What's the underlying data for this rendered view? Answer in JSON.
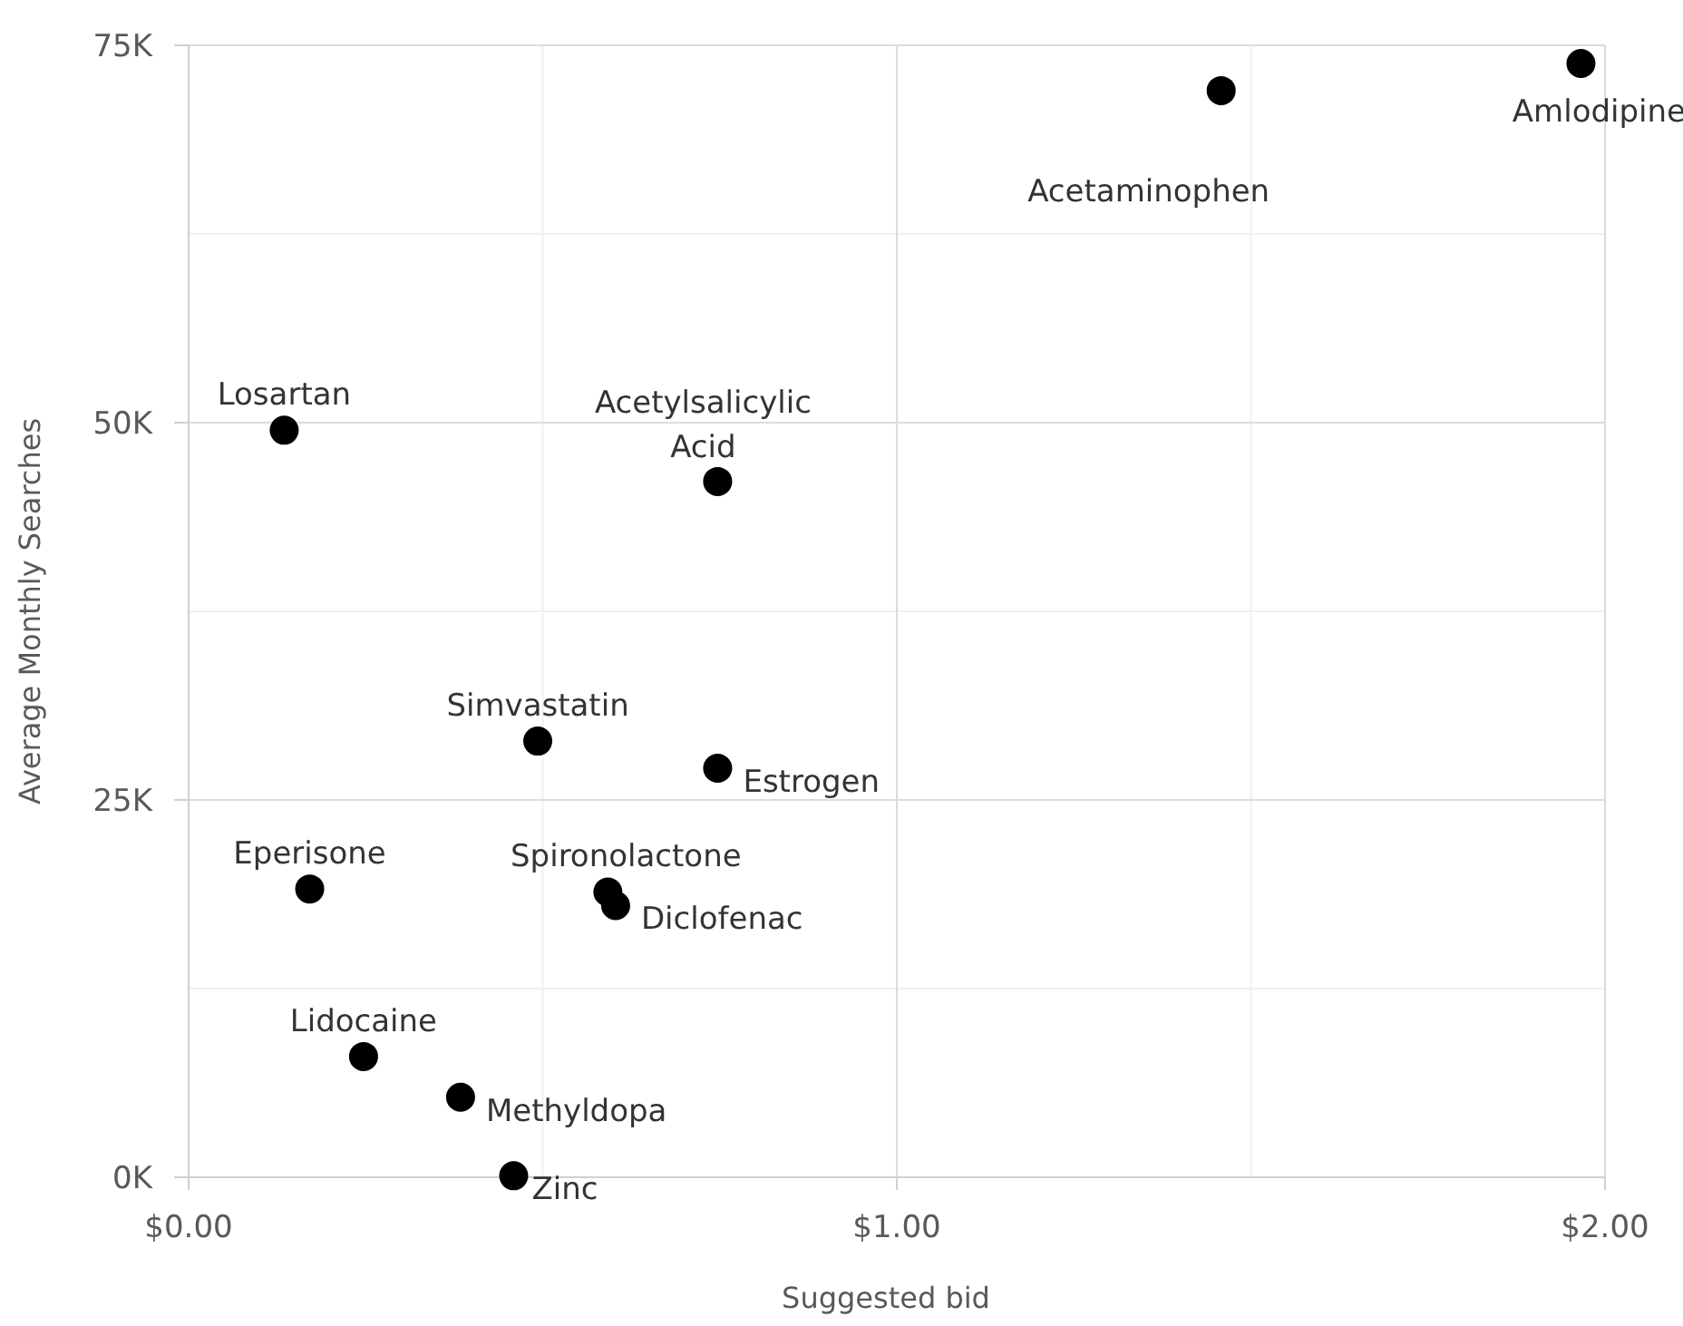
{
  "chart_data": {
    "type": "scatter",
    "xlabel": "Suggested bid",
    "ylabel": "Average Monthly Searches",
    "xlim": [
      0,
      2
    ],
    "xticks": [
      {
        "value": 0,
        "label": "$0.00"
      },
      {
        "value": 1,
        "label": "$1.00"
      },
      {
        "value": 2,
        "label": "$2.00"
      }
    ],
    "ylim": [
      0,
      75000
    ],
    "yticks": [
      {
        "value": 0,
        "label": "0K"
      },
      {
        "value": 25000,
        "label": "25K"
      },
      {
        "value": 50000,
        "label": "50K"
      },
      {
        "value": 75000,
        "label": "75K"
      }
    ],
    "grid": true,
    "marker": "circle",
    "series": [
      {
        "color": "#000000",
        "x": [
          0.135,
          0.747,
          1.458,
          1.966,
          0.493,
          0.747,
          0.171,
          0.592,
          0.603,
          0.247,
          0.384,
          0.459
        ],
        "values": [
          49500,
          46100,
          72000,
          73800,
          28900,
          27100,
          19100,
          18900,
          18000,
          8000,
          5300,
          100
        ]
      }
    ],
    "annotations": [
      {
        "text": "Losartan",
        "x": 0.135,
        "y": 49500
      },
      {
        "text": "Acetylsalicylic Acid",
        "x": 0.747,
        "y": 46100
      },
      {
        "text": "Acetaminophen",
        "x": 1.458,
        "y": 72000
      },
      {
        "text": "Amlodipine",
        "x": 1.966,
        "y": 73800
      },
      {
        "text": "Simvastatin",
        "x": 0.493,
        "y": 28900
      },
      {
        "text": "Estrogen",
        "x": 0.747,
        "y": 27100
      },
      {
        "text": "Eperisone",
        "x": 0.171,
        "y": 19100
      },
      {
        "text": "Spironolactone",
        "x": 0.592,
        "y": 18900
      },
      {
        "text": "Diclofenac",
        "x": 0.603,
        "y": 18000
      },
      {
        "text": "Lidocaine",
        "x": 0.247,
        "y": 8000
      },
      {
        "text": "Methyldopa",
        "x": 0.384,
        "y": 5300
      },
      {
        "text": "Zinc",
        "x": 0.459,
        "y": 100
      }
    ]
  }
}
